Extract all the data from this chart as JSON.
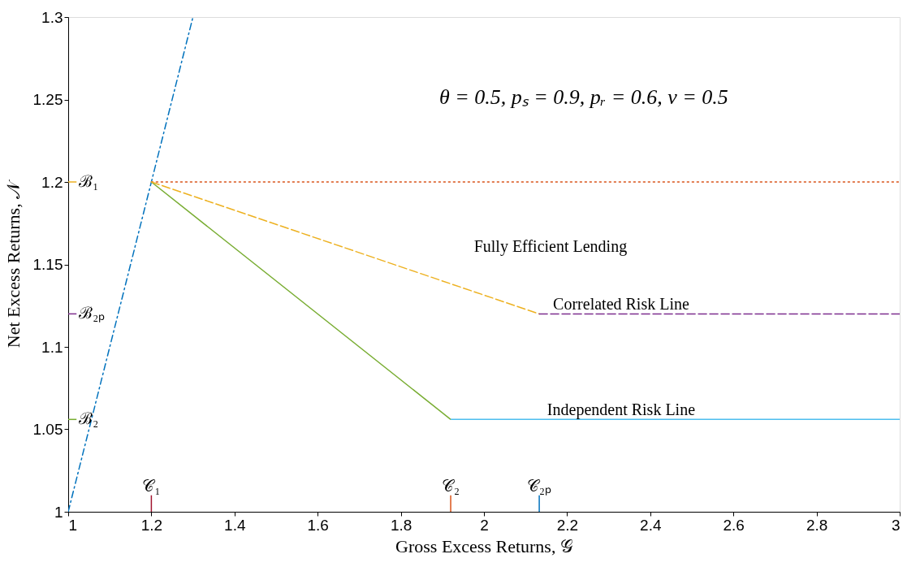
{
  "chart_data": {
    "type": "line",
    "xlabel": "Gross Excess Returns, 𝒢",
    "ylabel": "Net Excess Returns, 𝒩",
    "xlim": [
      1,
      3
    ],
    "xticks": [
      {
        "value": 1,
        "label": "1"
      },
      1.2,
      1.4,
      1.6,
      1.8,
      {
        "value": 2,
        "label": "2"
      },
      2.2,
      2.4,
      2.6,
      2.8,
      {
        "value": 3,
        "label": "3"
      }
    ],
    "ylim": [
      1,
      1.3
    ],
    "yticks": [
      {
        "value": 1,
        "label": "1"
      },
      1.05,
      {
        "value": 1.1,
        "label": "1.1"
      },
      1.15,
      {
        "value": 1.2,
        "label": "1.2"
      },
      1.25,
      {
        "value": 1.3,
        "label": "1.3"
      }
    ],
    "grid": false,
    "marker": "none",
    "series": [
      {
        "color": "#0072bd",
        "line_style": "dashdot",
        "x": [
          1,
          1.3
        ],
        "values": [
          1,
          1.3
        ]
      },
      {
        "color": "#d95319",
        "line_style": "dotted",
        "x": [
          1.2,
          3
        ],
        "values": [
          1.2,
          1.2
        ]
      },
      {
        "color": "#edb120",
        "line_style": "dashed",
        "x": [
          1.2,
          2.133
        ],
        "values": [
          1.2,
          1.12
        ]
      },
      {
        "color": "#7e2f8e",
        "line_style": "dashed",
        "x": [
          2.133,
          3
        ],
        "values": [
          1.12,
          1.12
        ]
      },
      {
        "color": "#77ac30",
        "line_style": "solid",
        "x": [
          1.2,
          1.92
        ],
        "values": [
          1.2,
          1.056
        ]
      },
      {
        "color": "#4dbeee",
        "line_style": "solid",
        "x": [
          1.92,
          3
        ],
        "values": [
          1.056,
          1.056
        ]
      },
      {
        "color": "#edb120",
        "line_style": "solid",
        "x": [
          1,
          1.02
        ],
        "values": [
          1.2,
          1.2
        ]
      },
      {
        "color": "#7e2f8e",
        "line_style": "solid",
        "x": [
          1,
          1.02
        ],
        "values": [
          1.12,
          1.12
        ]
      },
      {
        "color": "#77ac30",
        "line_style": "solid",
        "x": [
          1,
          1.02
        ],
        "values": [
          1.056,
          1.056
        ]
      },
      {
        "color": "#a2142f",
        "line_style": "solid",
        "x": [
          1.2,
          1.2
        ],
        "values": [
          1,
          1.01
        ]
      },
      {
        "color": "#d95319",
        "line_style": "solid",
        "x": [
          1.92,
          1.92
        ],
        "values": [
          1,
          1.01
        ]
      },
      {
        "color": "#0072bd",
        "line_style": "solid",
        "x": [
          2.133,
          2.133
        ],
        "values": [
          1,
          1.01
        ]
      }
    ],
    "annotations": [
      "θ = 0.5, pₛ = 0.9, pᵣ = 0.6, v = 0.5",
      "Fully Efficient Lending",
      {
        "text": "Correlated Risk Line",
        "x": 2.33,
        "y": 1.12
      },
      {
        "text": "Independent Risk Line",
        "x": 2.33,
        "y": 1.056
      },
      {
        "text": "ℬ₁",
        "x": 1.02,
        "y": 1.2
      },
      {
        "text": "ℬ₂ₚ",
        "x": 1.02,
        "y": 1.12
      },
      {
        "text": "ℬ₂",
        "x": 1.02,
        "y": 1.056
      },
      {
        "text": "𝒞₁",
        "x": 1.2,
        "y": 1.01
      },
      {
        "text": "𝒞₂",
        "x": 1.92,
        "y": 1.01
      },
      {
        "text": "𝒞₂ₚ",
        "x": 2.133,
        "y": 1.01
      }
    ]
  }
}
